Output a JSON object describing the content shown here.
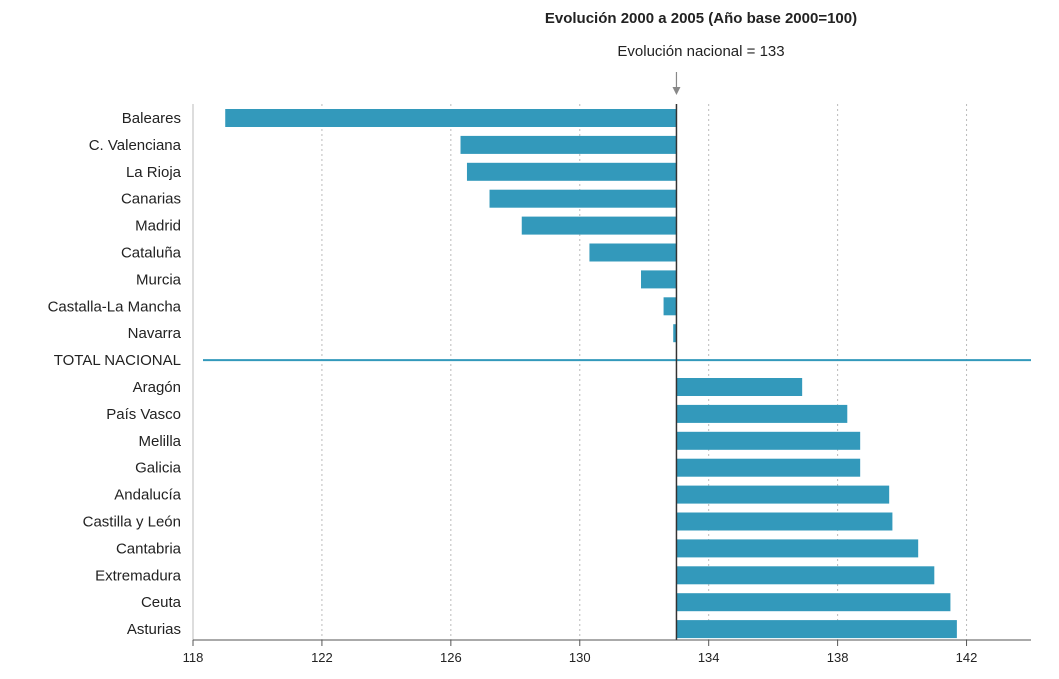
{
  "chart_data": {
    "type": "bar",
    "orientation": "horizontal",
    "title": "Evolución 2000 a 2005 (Año base 2000=100)",
    "reference": {
      "label": "Evolución nacional = 133",
      "value": 133
    },
    "xlim": [
      118,
      144
    ],
    "xticks": [
      118,
      122,
      126,
      130,
      134,
      138,
      142
    ],
    "grid": true,
    "categories": [
      "Baleares",
      "C. Valenciana",
      "La Rioja",
      "Canarias",
      "Madrid",
      "Cataluña",
      "Murcia",
      "Castalla-La Mancha",
      "Navarra",
      "TOTAL NACIONAL",
      "Aragón",
      "País Vasco",
      "Melilla",
      "Galicia",
      "Andalucía",
      "Castilla y León",
      "Cantabria",
      "Extremadura",
      "Ceuta",
      "Asturias"
    ],
    "values": [
      119.0,
      126.3,
      126.5,
      127.2,
      128.2,
      130.3,
      131.9,
      132.6,
      132.9,
      133.0,
      136.9,
      138.3,
      138.7,
      138.7,
      139.6,
      139.7,
      140.5,
      141.0,
      141.5,
      141.7
    ],
    "colors": {
      "bar": "#3399bb",
      "reference_line": "#333333",
      "grid": "#bbbbbb",
      "axis": "#555555"
    }
  }
}
